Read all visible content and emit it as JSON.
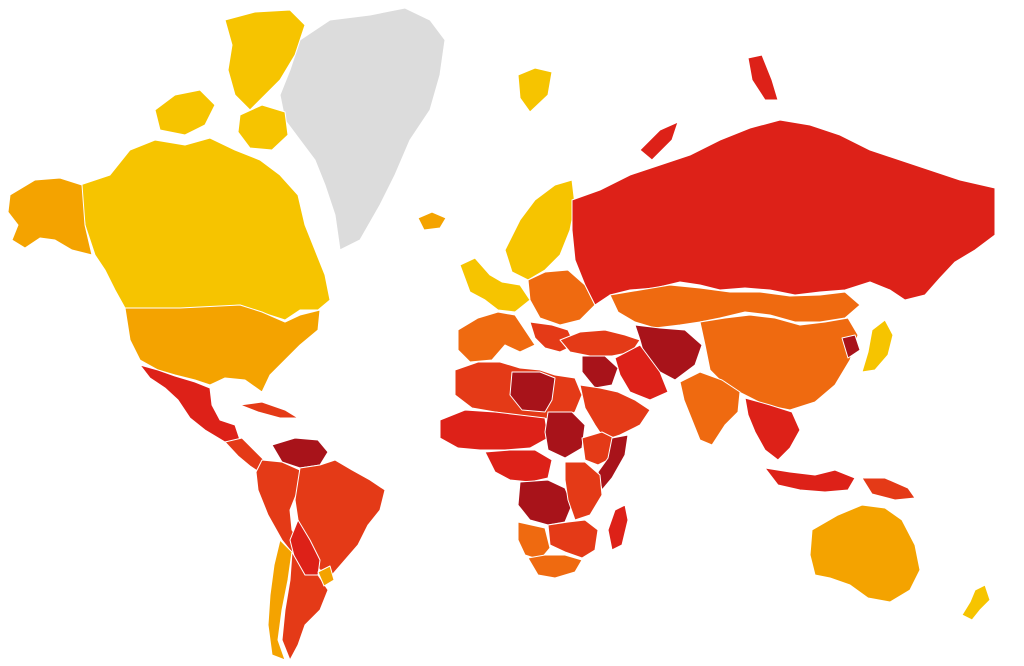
{
  "map": {
    "type": "choropleth-world-map",
    "text_labels": [],
    "legend": null,
    "palette": {
      "no_data": "#dcdcdc",
      "band_1": "#f6c400",
      "band_2": "#f4a300",
      "band_3": "#ef6a10",
      "band_4": "#e43a17",
      "band_5": "#dd2118",
      "band_6": "#a8131a"
    },
    "regions": [
      {
        "name": "greenland",
        "band": "no_data"
      },
      {
        "name": "canada",
        "band": "band_1"
      },
      {
        "name": "arctic-islands",
        "band": "band_1"
      },
      {
        "name": "alaska",
        "band": "band_2"
      },
      {
        "name": "usa",
        "band": "band_2"
      },
      {
        "name": "mexico",
        "band": "band_5"
      },
      {
        "name": "central-america",
        "band": "band_4"
      },
      {
        "name": "caribbean-cuba",
        "band": "band_4"
      },
      {
        "name": "venezuela",
        "band": "band_6"
      },
      {
        "name": "colombia-peru",
        "band": "band_4"
      },
      {
        "name": "brazil",
        "band": "band_4"
      },
      {
        "name": "bolivia-paraguay",
        "band": "band_5"
      },
      {
        "name": "chile",
        "band": "band_2"
      },
      {
        "name": "argentina",
        "band": "band_4"
      },
      {
        "name": "uruguay",
        "band": "band_2"
      },
      {
        "name": "iceland",
        "band": "band_2"
      },
      {
        "name": "scandinavia",
        "band": "band_1"
      },
      {
        "name": "western-europe",
        "band": "band_1"
      },
      {
        "name": "iberia-france-italy",
        "band": "band_3"
      },
      {
        "name": "eastern-europe",
        "band": "band_3"
      },
      {
        "name": "balkans",
        "band": "band_4"
      },
      {
        "name": "russia",
        "band": "band_5"
      },
      {
        "name": "svalbard",
        "band": "band_1"
      },
      {
        "name": "kazakhstan-mongolia",
        "band": "band_3"
      },
      {
        "name": "turkey-caucasus",
        "band": "band_4"
      },
      {
        "name": "central-asia-afghanistan",
        "band": "band_6"
      },
      {
        "name": "iran",
        "band": "band_5"
      },
      {
        "name": "arabia",
        "band": "band_4"
      },
      {
        "name": "syria-iraq",
        "band": "band_6"
      },
      {
        "name": "china",
        "band": "band_3"
      },
      {
        "name": "india",
        "band": "band_3"
      },
      {
        "name": "southeast-asia",
        "band": "band_5"
      },
      {
        "name": "north-korea",
        "band": "band_6"
      },
      {
        "name": "japan",
        "band": "band_1"
      },
      {
        "name": "indonesia",
        "band": "band_5"
      },
      {
        "name": "papua",
        "band": "band_4"
      },
      {
        "name": "australia",
        "band": "band_2"
      },
      {
        "name": "new-zealand",
        "band": "band_1"
      },
      {
        "name": "north-africa",
        "band": "band_4"
      },
      {
        "name": "libya",
        "band": "band_6"
      },
      {
        "name": "sahel",
        "band": "band_5"
      },
      {
        "name": "sudan",
        "band": "band_6"
      },
      {
        "name": "horn-of-africa",
        "band": "band_4"
      },
      {
        "name": "somalia",
        "band": "band_6"
      },
      {
        "name": "central-africa",
        "band": "band_5"
      },
      {
        "name": "congo",
        "band": "band_6"
      },
      {
        "name": "east-africa",
        "band": "band_4"
      },
      {
        "name": "southern-africa",
        "band": "band_4"
      },
      {
        "name": "south-africa",
        "band": "band_3"
      },
      {
        "name": "botswana-namibia",
        "band": "band_3"
      },
      {
        "name": "madagascar",
        "band": "band_5"
      }
    ]
  }
}
